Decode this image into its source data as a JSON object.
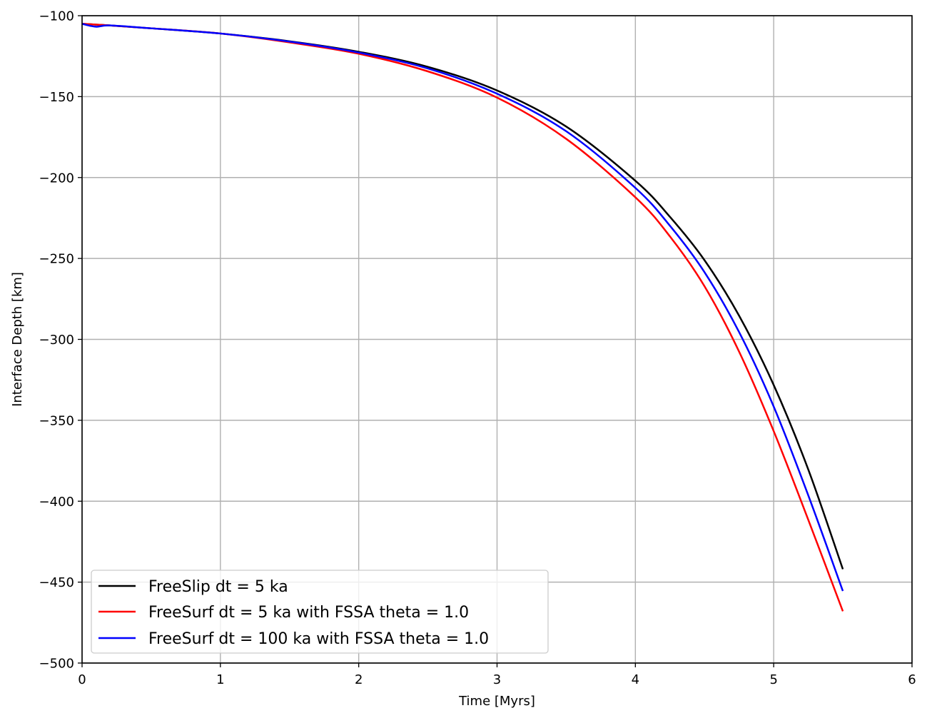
{
  "chart_data": {
    "type": "line",
    "title": "",
    "xlabel": "Time [Myrs]",
    "ylabel": "Interface Depth [km]",
    "xlim": [
      0,
      6
    ],
    "ylim": [
      -500,
      -100
    ],
    "xticks": [
      0,
      1,
      2,
      3,
      4,
      5,
      6
    ],
    "xtick_labels": [
      "0",
      "1",
      "2",
      "3",
      "4",
      "5",
      "6"
    ],
    "yticks": [
      -100,
      -150,
      -200,
      -250,
      -300,
      -350,
      -400,
      -450,
      -500
    ],
    "ytick_labels": [
      "−100",
      "−150",
      "−200",
      "−250",
      "−300",
      "−350",
      "−400",
      "−450",
      "−500"
    ],
    "grid": true,
    "legend_position": "lower-left",
    "series": [
      {
        "name": "FreeSlip dt = 5 ka",
        "color": "#000000",
        "x": [
          0,
          0.1,
          0.2,
          0.5,
          1.0,
          1.5,
          2.0,
          2.5,
          3.0,
          3.5,
          4.0,
          4.25,
          4.5,
          4.75,
          5.0,
          5.25,
          5.5
        ],
        "y": [
          -105,
          -105.5,
          -106,
          -107.8,
          -111,
          -115.8,
          -122.3,
          -131.6,
          -146.2,
          -168.5,
          -202,
          -224.3,
          -251.1,
          -285.4,
          -328.2,
          -380.4,
          -442
        ]
      },
      {
        "name": "FreeSurf dt = 5 ka with FSSA theta = 1.0",
        "color": "#ff0000",
        "x": [
          0,
          0.1,
          0.2,
          0.5,
          1.0,
          1.5,
          2.0,
          2.5,
          3.0,
          3.5,
          4.0,
          4.25,
          4.5,
          4.75,
          5.0,
          5.25,
          5.5
        ],
        "y": [
          -105,
          -105.5,
          -106,
          -107.8,
          -111,
          -116.5,
          -123.5,
          -134.4,
          -150.6,
          -176.1,
          -212.2,
          -236.4,
          -267.2,
          -307.6,
          -356.7,
          -411.5,
          -468
        ]
      },
      {
        "name": "FreeSurf dt = 100 ka with FSSA theta = 1.0",
        "color": "#0000ff",
        "x": [
          0,
          0.1,
          0.2,
          0.5,
          1.0,
          1.5,
          2.0,
          2.5,
          3.0,
          3.5,
          4.0,
          4.25,
          4.5,
          4.75,
          5.0,
          5.25,
          5.5
        ],
        "y": [
          -105,
          -106.8,
          -106,
          -107.8,
          -111,
          -116,
          -122.8,
          -132.6,
          -148.2,
          -171.4,
          -206.4,
          -229.8,
          -258.5,
          -295.5,
          -341.5,
          -396.4,
          -455.5
        ]
      }
    ]
  }
}
